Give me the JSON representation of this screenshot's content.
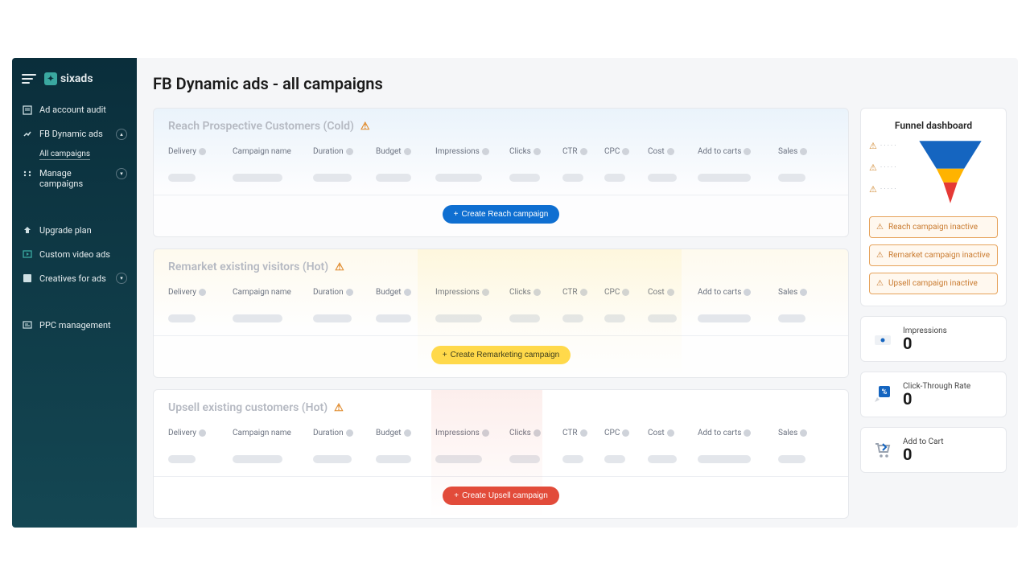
{
  "brand": "sixads",
  "sidebar": {
    "items": [
      {
        "label": "Ad account audit"
      },
      {
        "label": "FB Dynamic ads",
        "expanded": true
      },
      {
        "label": "Manage campaigns",
        "expanded": false
      },
      {
        "label": "Upgrade plan"
      },
      {
        "label": "Custom video ads"
      },
      {
        "label": "Creatives for ads",
        "expanded": false
      },
      {
        "label": "PPC management"
      }
    ],
    "subitem": "All campaigns"
  },
  "page_title": "FB Dynamic ads - all campaigns",
  "columns": {
    "delivery": "Delivery",
    "name": "Campaign name",
    "duration": "Duration",
    "budget": "Budget",
    "impressions": "Impressions",
    "clicks": "Clicks",
    "ctr": "CTR",
    "cpc": "CPC",
    "cost": "Cost",
    "add_to_carts": "Add to carts",
    "sales": "Sales"
  },
  "sections": [
    {
      "title": "Reach Prospective Customers (Cold)",
      "tone": "blue",
      "button": "Create Reach campaign"
    },
    {
      "title": "Remarket existing visitors (Hot)",
      "tone": "yellow",
      "button": "Create Remarketing campaign"
    },
    {
      "title": "Upsell existing customers (Hot)",
      "tone": "red",
      "button": "Create Upsell campaign"
    }
  ],
  "funnel": {
    "title": "Funnel dashboard",
    "colors": {
      "top": "#1565c0",
      "mid": "#ffb300",
      "bot": "#e53935"
    },
    "statuses": [
      "Reach campaign inactive",
      "Remarket campaign inactive",
      "Upsell campaign inactive"
    ]
  },
  "metrics": [
    {
      "label": "Impressions",
      "value": "0",
      "icon": "eye"
    },
    {
      "label": "Click-Through Rate",
      "value": "0",
      "icon": "percent"
    },
    {
      "label": "Add to Cart",
      "value": "0",
      "icon": "cart"
    }
  ],
  "colors": {
    "sidebar_top": "#0a2e3b",
    "sidebar_bottom": "#144753",
    "page_bg": "#f5f6f8",
    "card_border": "#e6e8ec",
    "skeleton": "#e3e6eb",
    "warn": "#e08b2e",
    "btn_blue": "#0f6fd1",
    "btn_yellow": "#ffd94a",
    "btn_red": "#e24b3a"
  }
}
